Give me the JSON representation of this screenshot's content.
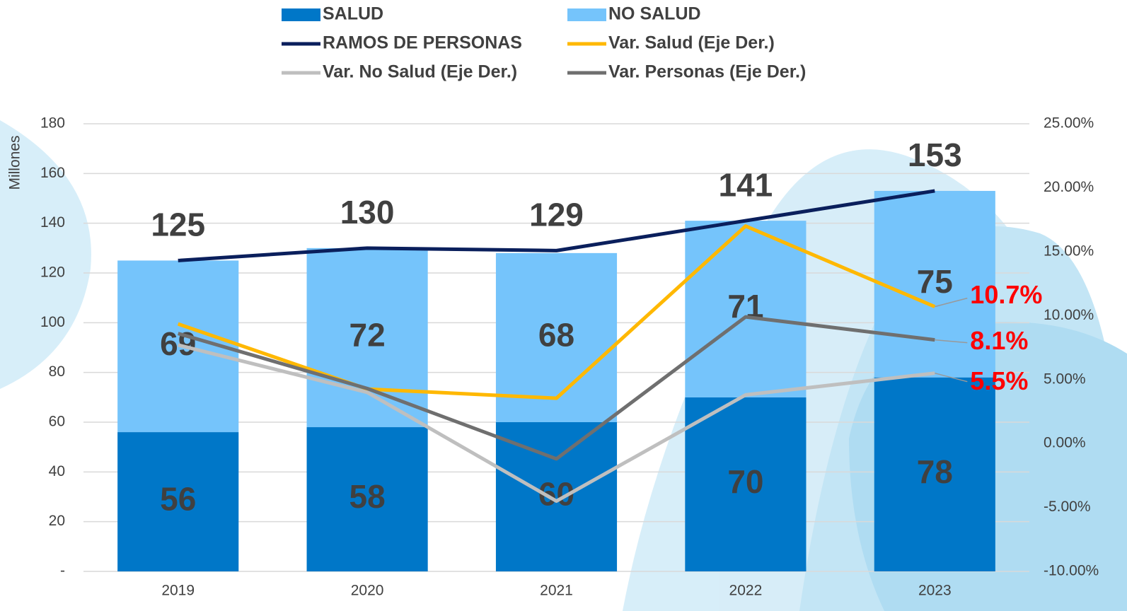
{
  "chart_data": {
    "type": "bar",
    "stacked": true,
    "y_label": "Millones",
    "categories": [
      "2019",
      "2020",
      "2021",
      "2022",
      "2023"
    ],
    "series": [
      {
        "name": "SALUD",
        "color": "#0077c8",
        "values": [
          56,
          58,
          60,
          70,
          78
        ]
      },
      {
        "name": "NO SALUD",
        "color": "#75c4fb",
        "values": [
          69,
          72,
          68,
          71,
          75
        ]
      },
      {
        "name": "RAMOS DE PERSONAS",
        "type": "line",
        "color": "#0a1f5c",
        "values": [
          125,
          130,
          129,
          141,
          153
        ]
      },
      {
        "name": "Var. Salud (Eje Der.)",
        "type": "line",
        "axis": "y2",
        "color": "#ffb800",
        "values": [
          9.35,
          4.26,
          3.54,
          17.0,
          10.7
        ],
        "value_labels": [
          null,
          null,
          null,
          null,
          "10.7%"
        ]
      },
      {
        "name": "Var. No Salud (Eje Der.)",
        "type": "line",
        "axis": "y2",
        "color": "#bfbfbf",
        "values": [
          7.7,
          4.0,
          -4.5,
          3.8,
          5.5
        ],
        "value_labels": [
          null,
          null,
          null,
          null,
          "5.5%"
        ]
      },
      {
        "name": "Var. Personas (Eje Der.)",
        "type": "line",
        "axis": "y2",
        "color": "#6f6f6f",
        "values": [
          8.6,
          4.3,
          -1.2,
          9.9,
          8.1
        ],
        "value_labels": [
          null,
          null,
          null,
          null,
          "8.1%"
        ]
      }
    ],
    "ylim": [
      0,
      180
    ],
    "yticks": [
      {
        "value": 0,
        "label": "-"
      },
      20,
      40,
      60,
      80,
      100,
      120,
      140,
      160,
      180
    ],
    "y2lim": [
      -10,
      25
    ],
    "y2ticks": [
      {
        "value": -10,
        "label": "-10.00%"
      },
      {
        "value": -5,
        "label": "-5.00%"
      },
      {
        "value": 0,
        "label": "0.00%"
      },
      {
        "value": 5,
        "label": "5.00%"
      },
      {
        "value": 10,
        "label": "10.00%"
      },
      {
        "value": 15,
        "label": "15.00%"
      },
      {
        "value": 20,
        "label": "20.00%"
      },
      {
        "value": 25,
        "label": "25.00%"
      }
    ],
    "grid": true
  }
}
